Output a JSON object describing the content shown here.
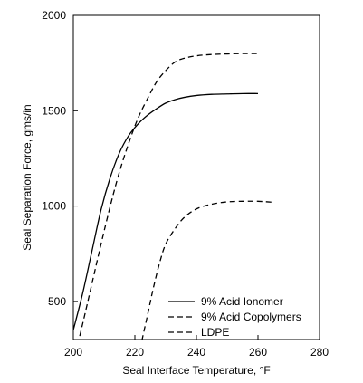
{
  "chart_data": {
    "type": "line",
    "xlabel": "Seal Interface Temperature, °F",
    "ylabel": "Seal Separation Force, gms/in",
    "xlim": [
      200,
      280
    ],
    "ylim": [
      300,
      2000
    ],
    "x_ticks": [
      200,
      220,
      240,
      260,
      280
    ],
    "y_ticks": [
      500,
      1000,
      1500,
      2000
    ],
    "x_tick_labels": [
      "200",
      "220",
      "240",
      "260",
      "280"
    ],
    "y_tick_labels": [
      "500",
      "1000",
      "1500",
      "2000"
    ],
    "grid": false,
    "legend_position": "bottom-right",
    "series": [
      {
        "name": "9% Acid Ionomer",
        "line_style": "solid",
        "points": [
          [
            200,
            350
          ],
          [
            203,
            540
          ],
          [
            206,
            760
          ],
          [
            209,
            980
          ],
          [
            212,
            1150
          ],
          [
            215,
            1280
          ],
          [
            218,
            1370
          ],
          [
            221,
            1430
          ],
          [
            224,
            1475
          ],
          [
            227,
            1510
          ],
          [
            230,
            1540
          ],
          [
            233,
            1558
          ],
          [
            236,
            1570
          ],
          [
            240,
            1580
          ],
          [
            245,
            1586
          ],
          [
            250,
            1588
          ],
          [
            255,
            1590
          ],
          [
            260,
            1590
          ]
        ]
      },
      {
        "name": "9% Acid Copolymers",
        "line_style": "dashed",
        "points": [
          [
            200,
            180
          ],
          [
            203,
            380
          ],
          [
            206,
            590
          ],
          [
            209,
            800
          ],
          [
            212,
            1000
          ],
          [
            215,
            1180
          ],
          [
            218,
            1330
          ],
          [
            221,
            1460
          ],
          [
            224,
            1560
          ],
          [
            227,
            1650
          ],
          [
            230,
            1710
          ],
          [
            233,
            1755
          ],
          [
            236,
            1775
          ],
          [
            240,
            1788
          ],
          [
            245,
            1795
          ],
          [
            250,
            1798
          ],
          [
            255,
            1800
          ],
          [
            260,
            1800
          ]
        ]
      },
      {
        "name": "LDPE",
        "line_style": "dashed",
        "points": [
          [
            220,
            110
          ],
          [
            221,
            150
          ],
          [
            222,
            270
          ],
          [
            224,
            420
          ],
          [
            226,
            570
          ],
          [
            228,
            700
          ],
          [
            230,
            800
          ],
          [
            233,
            880
          ],
          [
            236,
            940
          ],
          [
            240,
            985
          ],
          [
            245,
            1010
          ],
          [
            250,
            1022
          ],
          [
            255,
            1025
          ],
          [
            260,
            1025
          ],
          [
            265,
            1020
          ]
        ]
      }
    ]
  }
}
